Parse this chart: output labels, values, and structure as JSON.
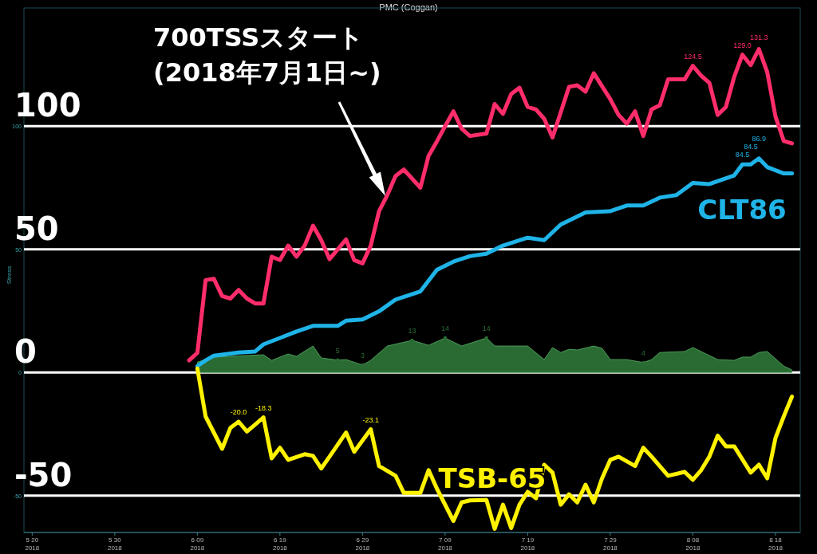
{
  "chart_data": {
    "type": "line",
    "title": "PMC (Coggan)",
    "ylabel": "Stress",
    "xlim": [
      "2018-05-19",
      "2018-08-21"
    ],
    "ylim": [
      -65,
      148
    ],
    "xticks": [
      {
        "value": "2018-05-20",
        "label": "5 20\n2018"
      },
      {
        "value": "2018-05-30",
        "label": "5 30\n2018"
      },
      {
        "value": "2018-06-09",
        "label": "6 09\n2018"
      },
      {
        "value": "2018-06-19",
        "label": "6 19\n2018"
      },
      {
        "value": "2018-06-29",
        "label": "6 29\n2018"
      },
      {
        "value": "2018-07-09",
        "label": "7 09\n2018"
      },
      {
        "value": "2018-07-19",
        "label": "7 19\n2018"
      },
      {
        "value": "2018-07-29",
        "label": "7 29\n2018"
      },
      {
        "value": "2018-08-08",
        "label": "8 08\n2018"
      },
      {
        "value": "2018-08-18",
        "label": "8 18\n2018"
      }
    ],
    "yticks": [
      -50,
      0,
      50,
      100
    ],
    "ref_lines": [
      {
        "axis": "y",
        "value": 100,
        "label": "100",
        "color": "#ffffff"
      },
      {
        "axis": "y",
        "value": 50,
        "label": "50",
        "color": "#ffffff"
      },
      {
        "axis": "y",
        "value": 0,
        "label": "0",
        "color": "#ffffff"
      },
      {
        "axis": "y",
        "value": -50,
        "label": "-50",
        "color": "#ffffff"
      }
    ],
    "annotations": [
      "700TSSスタート\n(2018年7月1日~)"
    ],
    "series": [
      {
        "color": "#ff2d6a",
        "x": [
          "2018-06-08",
          "2018-06-09",
          "2018-06-10",
          "2018-06-11",
          "2018-06-12",
          "2018-06-13",
          "2018-06-14",
          "2018-06-15",
          "2018-06-16",
          "2018-06-17",
          "2018-06-18",
          "2018-06-19",
          "2018-06-20",
          "2018-06-21",
          "2018-06-22",
          "2018-06-23",
          "2018-06-24",
          "2018-06-25",
          "2018-06-27",
          "2018-06-28",
          "2018-06-29",
          "2018-06-30",
          "2018-07-01",
          "2018-07-02",
          "2018-07-03",
          "2018-07-04",
          "2018-07-06",
          "2018-07-07",
          "2018-07-08",
          "2018-07-09",
          "2018-07-10",
          "2018-07-11",
          "2018-07-12",
          "2018-07-14",
          "2018-07-15",
          "2018-07-16",
          "2018-07-17",
          "2018-07-18",
          "2018-07-19",
          "2018-07-20",
          "2018-07-21",
          "2018-07-22",
          "2018-07-24",
          "2018-07-25",
          "2018-07-26",
          "2018-07-27",
          "2018-07-29",
          "2018-07-30",
          "2018-07-31",
          "2018-08-01",
          "2018-08-02",
          "2018-08-03",
          "2018-08-04",
          "2018-08-05",
          "2018-08-07",
          "2018-08-08",
          "2018-08-09",
          "2018-08-10",
          "2018-08-11",
          "2018-08-12",
          "2018-08-13",
          "2018-08-14",
          "2018-08-15",
          "2018-08-16",
          "2018-08-17",
          "2018-08-18",
          "2018-08-19",
          "2018-08-20"
        ],
        "values": [
          4.9,
          8,
          37.5,
          38,
          31,
          30,
          33.5,
          30,
          28,
          28,
          47,
          45.6,
          51.5,
          47,
          51.5,
          59.6,
          53.7,
          46,
          54,
          45.6,
          44.3,
          51.5,
          65.5,
          72,
          79.8,
          82.4,
          75,
          88,
          93.8,
          100,
          106,
          99,
          96,
          97,
          109,
          105,
          113,
          115.6,
          107.8,
          106.8,
          103,
          95.4,
          116,
          116.6,
          114,
          121.5,
          111,
          104.6,
          101,
          106,
          96,
          106.8,
          108.5,
          119,
          119,
          124.5,
          120.5,
          117.6,
          104.6,
          107.8,
          120,
          129.0,
          124.8,
          131.3,
          122,
          104,
          94,
          93
        ],
        "value_labels": [
          null,
          null,
          null,
          null,
          null,
          null,
          null,
          null,
          null,
          null,
          null,
          null,
          null,
          null,
          null,
          null,
          null,
          null,
          null,
          null,
          null,
          null,
          null,
          null,
          null,
          null,
          null,
          null,
          null,
          null,
          null,
          null,
          null,
          null,
          null,
          null,
          null,
          null,
          null,
          null,
          null,
          null,
          null,
          null,
          null,
          null,
          null,
          null,
          null,
          null,
          null,
          null,
          null,
          null,
          null,
          "124.5",
          null,
          null,
          null,
          null,
          null,
          "129.0",
          null,
          "131.3",
          null,
          null,
          null,
          null
        ]
      },
      {
        "name": "CLT86",
        "color": "#1fb4e8",
        "x": [
          "2018-06-09",
          "2018-06-10",
          "2018-06-11",
          "2018-06-14",
          "2018-06-16",
          "2018-06-17",
          "2018-06-19",
          "2018-06-21",
          "2018-06-23",
          "2018-06-26",
          "2018-06-27",
          "2018-06-29",
          "2018-07-01",
          "2018-07-03",
          "2018-07-06",
          "2018-07-08",
          "2018-07-10",
          "2018-07-12",
          "2018-07-14",
          "2018-07-16",
          "2018-07-19",
          "2018-07-21",
          "2018-07-23",
          "2018-07-26",
          "2018-07-29",
          "2018-07-31",
          "2018-08-02",
          "2018-08-04",
          "2018-08-06",
          "2018-08-08",
          "2018-08-10",
          "2018-08-13",
          "2018-08-14",
          "2018-08-15",
          "2018-08-16",
          "2018-08-17",
          "2018-08-19",
          "2018-08-20"
        ],
        "values": [
          2.6,
          4.9,
          6.8,
          8.1,
          8.5,
          11.4,
          14,
          16.6,
          18.9,
          18.9,
          21,
          21.5,
          24.8,
          29.6,
          32.9,
          41.7,
          45,
          47.2,
          48.2,
          51.5,
          54.7,
          53.7,
          60,
          65,
          65.5,
          67.8,
          67.8,
          71,
          72,
          76.9,
          76.5,
          80,
          84.5,
          84.5,
          86.9,
          83.4,
          80.8,
          80.8
        ],
        "value_labels": [
          null,
          null,
          null,
          null,
          null,
          null,
          null,
          null,
          null,
          null,
          null,
          null,
          null,
          null,
          null,
          null,
          null,
          null,
          null,
          null,
          null,
          null,
          null,
          null,
          null,
          null,
          null,
          null,
          null,
          null,
          null,
          null,
          "84.5",
          "84.5",
          "86.9",
          null,
          null,
          null
        ]
      },
      {
        "type": "area",
        "color": "#2a6b34",
        "x": [
          "2018-06-09",
          "2018-06-11",
          "2018-06-17",
          "2018-06-18",
          "2018-06-20",
          "2018-06-21",
          "2018-06-23",
          "2018-06-24",
          "2018-06-26",
          "2018-06-27",
          "2018-06-29",
          "2018-06-30",
          "2018-07-02",
          "2018-07-05",
          "2018-07-07",
          "2018-07-09",
          "2018-07-11",
          "2018-07-14",
          "2018-07-15",
          "2018-07-17",
          "2018-07-19",
          "2018-07-21",
          "2018-07-22",
          "2018-07-23",
          "2018-07-24",
          "2018-07-25",
          "2018-07-27",
          "2018-07-28",
          "2018-07-29",
          "2018-07-31",
          "2018-08-02",
          "2018-08-03",
          "2018-08-04",
          "2018-08-07",
          "2018-08-08",
          "2018-08-11",
          "2018-08-13",
          "2018-08-14",
          "2018-08-15",
          "2018-08-16",
          "2018-08-17",
          "2018-08-19",
          "2018-08-20"
        ],
        "values": [
          4.2,
          6.2,
          7.2,
          4.9,
          7.5,
          6.5,
          10.7,
          5.9,
          5,
          5.2,
          3,
          4.9,
          10.7,
          13,
          11,
          14,
          10.7,
          14,
          10.7,
          10.7,
          10.7,
          5.2,
          10.1,
          8.1,
          9.4,
          9.1,
          10.7,
          9.8,
          5.2,
          5.2,
          4,
          5.2,
          8.1,
          8.5,
          10.1,
          5.2,
          4.9,
          6.2,
          6.2,
          8.1,
          8.5,
          2.6,
          1
        ],
        "value_labels": [
          null,
          null,
          null,
          null,
          null,
          null,
          null,
          null,
          "5",
          null,
          "3",
          null,
          null,
          "13",
          null,
          "14",
          null,
          "14",
          null,
          null,
          null,
          null,
          null,
          null,
          null,
          null,
          null,
          null,
          null,
          null,
          "4",
          null,
          null,
          null,
          null,
          null,
          null,
          null,
          null,
          null,
          null,
          null,
          null
        ]
      },
      {
        "name": "TSB-65",
        "color": "#fff200",
        "x": [
          "2018-06-09",
          "2018-06-10",
          "2018-06-12",
          "2018-06-13",
          "2018-06-14",
          "2018-06-15",
          "2018-06-16",
          "2018-06-17",
          "2018-06-18",
          "2018-06-19",
          "2018-06-20",
          "2018-06-22",
          "2018-06-23",
          "2018-06-24",
          "2018-06-25",
          "2018-06-27",
          "2018-06-28",
          "2018-06-30",
          "2018-07-01",
          "2018-07-03",
          "2018-07-04",
          "2018-07-06",
          "2018-07-07",
          "2018-07-08",
          "2018-07-10",
          "2018-07-11",
          "2018-07-12",
          "2018-07-14",
          "2018-07-15",
          "2018-07-16",
          "2018-07-17",
          "2018-07-18",
          "2018-07-19",
          "2018-07-20",
          "2018-07-21",
          "2018-07-22",
          "2018-07-23",
          "2018-07-24",
          "2018-07-25",
          "2018-07-26",
          "2018-07-27",
          "2018-07-28",
          "2018-07-29",
          "2018-07-30",
          "2018-08-01",
          "2018-08-02",
          "2018-08-03",
          "2018-08-05",
          "2018-08-07",
          "2018-08-08",
          "2018-08-09",
          "2018-08-10",
          "2018-08-11",
          "2018-08-12",
          "2018-08-13",
          "2018-08-15",
          "2018-08-16",
          "2018-08-17",
          "2018-08-18",
          "2018-08-19",
          "2018-08-20"
        ],
        "values": [
          1.6,
          -17.9,
          -31,
          -22.5,
          -20.0,
          -24,
          -21.2,
          -18.3,
          -34.9,
          -30.6,
          -35.5,
          -33.2,
          -33.9,
          -39,
          -34.2,
          -24.4,
          -32.2,
          -23.1,
          -38,
          -42,
          -48.9,
          -48.9,
          -39.7,
          -47.2,
          -60.3,
          -52.8,
          -52,
          -51.8,
          -63.5,
          -53.7,
          -63.2,
          -53.7,
          -48.5,
          -51.1,
          -37.5,
          -40.7,
          -53.7,
          -49.5,
          -52.8,
          -45.6,
          -52.8,
          -43,
          -35.5,
          -34.2,
          -38,
          -30.6,
          -34.2,
          -42,
          -40.4,
          -43.6,
          -39.7,
          -34.2,
          -25.7,
          -30,
          -30,
          -40.7,
          -37.5,
          -43,
          -26.7,
          -17.9,
          -9.8
        ],
        "value_labels": [
          null,
          null,
          null,
          null,
          "-20.0",
          null,
          null,
          "-18.3",
          null,
          null,
          null,
          null,
          null,
          null,
          null,
          null,
          null,
          "-23.1",
          null,
          null,
          null,
          null,
          null,
          null,
          null,
          null,
          null,
          null,
          null,
          null,
          null,
          null,
          null,
          null,
          null,
          null,
          null,
          null,
          null,
          null,
          null,
          null,
          null,
          null,
          null,
          null,
          null,
          null,
          null,
          null,
          null,
          null,
          null,
          null,
          null,
          null,
          null,
          null,
          null,
          null,
          null
        ]
      }
    ]
  }
}
